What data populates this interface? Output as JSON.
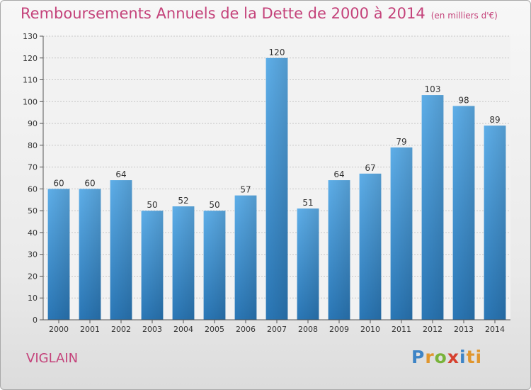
{
  "header": {
    "title": "Remboursements Annuels de la Dette de 2000 à 2014",
    "unit": "(en milliers d'€)"
  },
  "footer": {
    "place": "VIGLAIN",
    "logo_letters": [
      "P",
      "r",
      "o",
      "x",
      "i",
      "ti"
    ]
  },
  "colors": {
    "title": "#c4427a",
    "bar_top": "#5eaee8",
    "bar_bottom": "#2a77b6"
  },
  "chart_data": {
    "type": "bar",
    "title": "Remboursements Annuels de la Dette de 2000 à 2014",
    "subtitle": "(en milliers d'€)",
    "xlabel": "",
    "ylabel": "",
    "categories": [
      "2000",
      "2001",
      "2002",
      "2003",
      "2004",
      "2005",
      "2006",
      "2007",
      "2008",
      "2009",
      "2010",
      "2011",
      "2012",
      "2013",
      "2014"
    ],
    "values": [
      60,
      60,
      64,
      50,
      52,
      50,
      57,
      120,
      51,
      64,
      67,
      79,
      103,
      98,
      89
    ],
    "ylim": [
      0,
      130
    ],
    "yticks": [
      0,
      10,
      20,
      30,
      40,
      50,
      60,
      70,
      80,
      90,
      100,
      110,
      120,
      130
    ],
    "grid": true,
    "legend": "none"
  }
}
